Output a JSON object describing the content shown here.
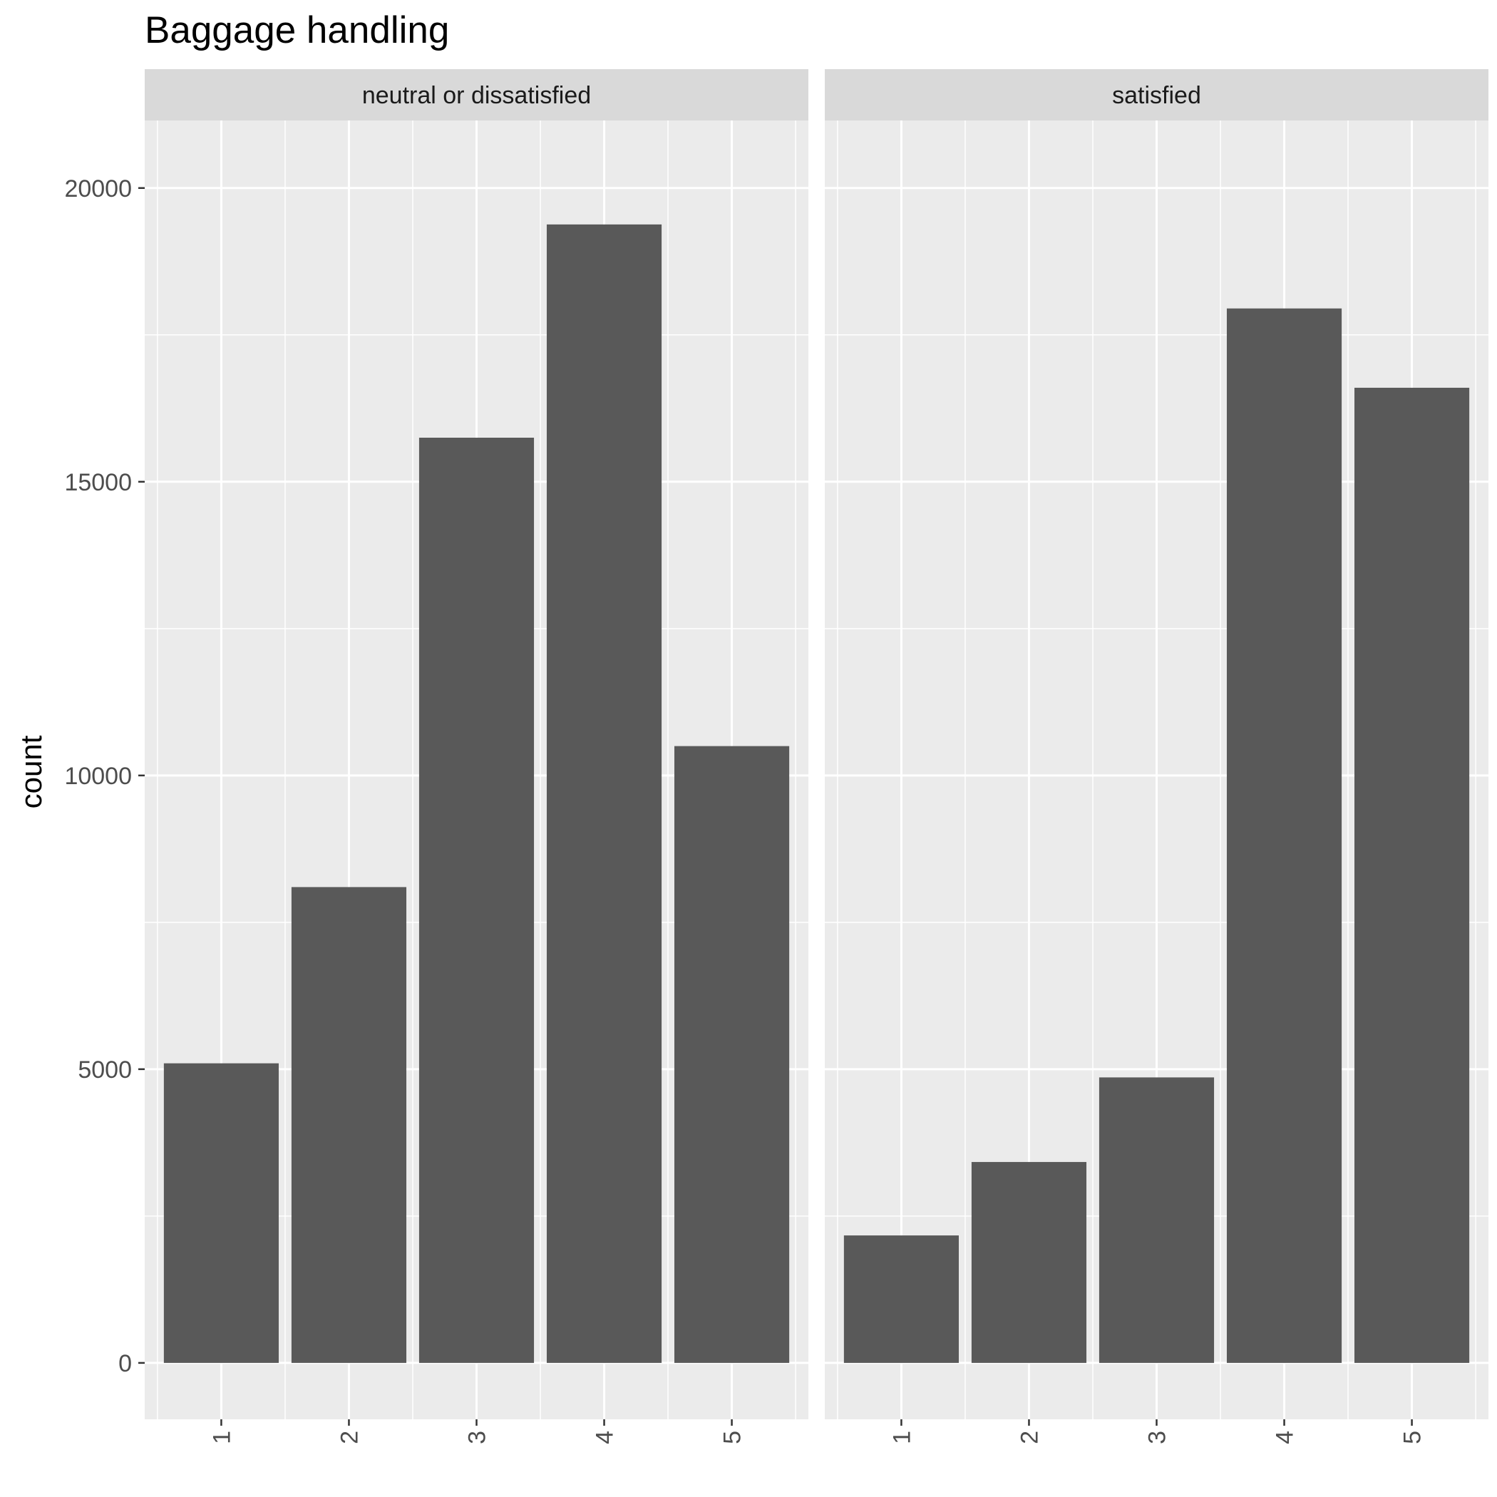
{
  "chart_data": {
    "type": "bar",
    "title": "Baggage handling",
    "xlabel": "",
    "ylabel": "count",
    "categories": [
      "1",
      "2",
      "3",
      "4",
      "5"
    ],
    "yticks": [
      "0",
      "5000",
      "10000",
      "15000",
      "20000"
    ],
    "ylim": [
      -960,
      21150
    ],
    "grid": true,
    "facets": [
      {
        "label": "neutral or dissatisfied",
        "values": [
          5100,
          8100,
          15750,
          19380,
          10500
        ]
      },
      {
        "label": "satisfied",
        "values": [
          2170,
          3420,
          4860,
          17950,
          16600
        ]
      }
    ],
    "colors": {
      "bar": "#595959",
      "panel": "#ebebeb",
      "strip": "#d9d9d9",
      "grid": "#ffffff"
    }
  }
}
